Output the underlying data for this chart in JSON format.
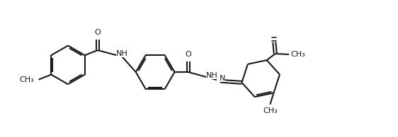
{
  "background_color": "#ffffff",
  "line_color": "#1a1a1a",
  "line_width": 1.5,
  "font_size": 8.0,
  "figsize": [
    5.62,
    1.94
  ],
  "dpi": 100,
  "xlim": [
    -0.5,
    10.5
  ],
  "ylim": [
    -0.2,
    3.6
  ]
}
